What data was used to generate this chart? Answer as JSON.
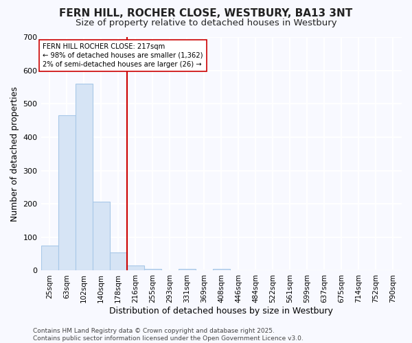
{
  "title": "FERN HILL, ROCHER CLOSE, WESTBURY, BA13 3NT",
  "subtitle": "Size of property relative to detached houses in Westbury",
  "xlabel": "Distribution of detached houses by size in Westbury",
  "ylabel": "Number of detached properties",
  "categories": [
    "25sqm",
    "63sqm",
    "102sqm",
    "140sqm",
    "178sqm",
    "216sqm",
    "255sqm",
    "293sqm",
    "331sqm",
    "369sqm",
    "408sqm",
    "446sqm",
    "484sqm",
    "522sqm",
    "561sqm",
    "599sqm",
    "637sqm",
    "675sqm",
    "714sqm",
    "752sqm",
    "790sqm"
  ],
  "values": [
    75,
    465,
    560,
    207,
    55,
    15,
    5,
    0,
    5,
    0,
    5,
    0,
    0,
    0,
    0,
    0,
    0,
    0,
    0,
    0,
    0
  ],
  "bar_fill_color": "#d6e4f5",
  "bar_edge_color": "#a8c8e8",
  "red_line_index": 5,
  "red_line_color": "#cc0000",
  "ylim": [
    0,
    700
  ],
  "yticks": [
    0,
    100,
    200,
    300,
    400,
    500,
    600,
    700
  ],
  "annotation_text": "FERN HILL ROCHER CLOSE: 217sqm\n← 98% of detached houses are smaller (1,362)\n2% of semi-detached houses are larger (26) →",
  "footnote": "Contains HM Land Registry data © Crown copyright and database right 2025.\nContains public sector information licensed under the Open Government Licence v3.0.",
  "bg_color": "#f8f9ff",
  "plot_bg_color": "#f8f9ff",
  "grid_color": "#ffffff",
  "title_fontsize": 11,
  "subtitle_fontsize": 9.5,
  "label_fontsize": 9,
  "tick_fontsize": 7.5,
  "footnote_fontsize": 6.5
}
